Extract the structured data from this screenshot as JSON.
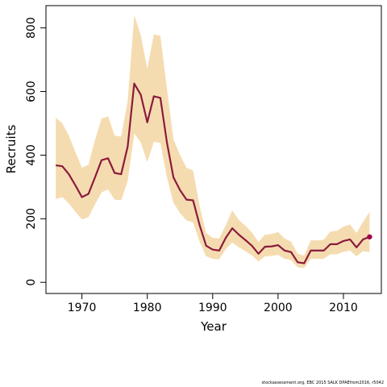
{
  "chart_data": {
    "type": "line",
    "xlabel": "Year",
    "ylabel": "Recruits",
    "xlim": [
      1964.5,
      2015.8
    ],
    "ylim": [
      -35,
      870
    ],
    "xticks": [
      1970,
      1980,
      1990,
      2000,
      2010
    ],
    "yticks": [
      0,
      200,
      400,
      600,
      800
    ],
    "x": [
      1966,
      1967,
      1968,
      1969,
      1970,
      1971,
      1972,
      1973,
      1974,
      1975,
      1976,
      1977,
      1978,
      1979,
      1980,
      1981,
      1982,
      1983,
      1984,
      1985,
      1986,
      1987,
      1988,
      1989,
      1990,
      1991,
      1992,
      1993,
      1994,
      1995,
      1996,
      1997,
      1998,
      1999,
      2000,
      2001,
      2002,
      2003,
      2004,
      2005,
      2006,
      2007,
      2008,
      2009,
      2010,
      2011,
      2012,
      2013,
      2014
    ],
    "series": [
      {
        "values": [
          368,
          365,
          340,
          305,
          268,
          278,
          330,
          384,
          390,
          344,
          340,
          427,
          625,
          590,
          503,
          585,
          580,
          440,
          330,
          290,
          260,
          258,
          180,
          115,
          103,
          100,
          140,
          170,
          150,
          133,
          115,
          90,
          112,
          113,
          117,
          100,
          95,
          63,
          60,
          100,
          100,
          100,
          120,
          120,
          130,
          135,
          110,
          135,
          143
        ]
      }
    ],
    "band": {
      "upper": [
        518,
        500,
        462,
        410,
        360,
        370,
        448,
        515,
        522,
        462,
        458,
        570,
        840,
        778,
        672,
        780,
        775,
        610,
        450,
        400,
        360,
        352,
        240,
        155,
        140,
        138,
        180,
        226,
        196,
        178,
        157,
        127,
        150,
        152,
        158,
        138,
        128,
        90,
        84,
        132,
        132,
        134,
        160,
        162,
        175,
        182,
        155,
        190,
        222
      ],
      "lower": [
        262,
        268,
        248,
        222,
        198,
        205,
        245,
        283,
        292,
        260,
        258,
        318,
        468,
        440,
        378,
        442,
        438,
        330,
        250,
        218,
        195,
        188,
        128,
        82,
        74,
        72,
        105,
        125,
        110,
        98,
        85,
        65,
        82,
        83,
        86,
        74,
        70,
        47,
        45,
        74,
        74,
        74,
        88,
        88,
        96,
        100,
        82,
        98,
        95
      ]
    },
    "colors": {
      "line": "#8b1a3c",
      "band": "#f5dcb0",
      "last_point": "#a0004e"
    },
    "footer": "stockassessment.org,  EBC 2015  SALK  DPAEfrom2016, r5042"
  }
}
